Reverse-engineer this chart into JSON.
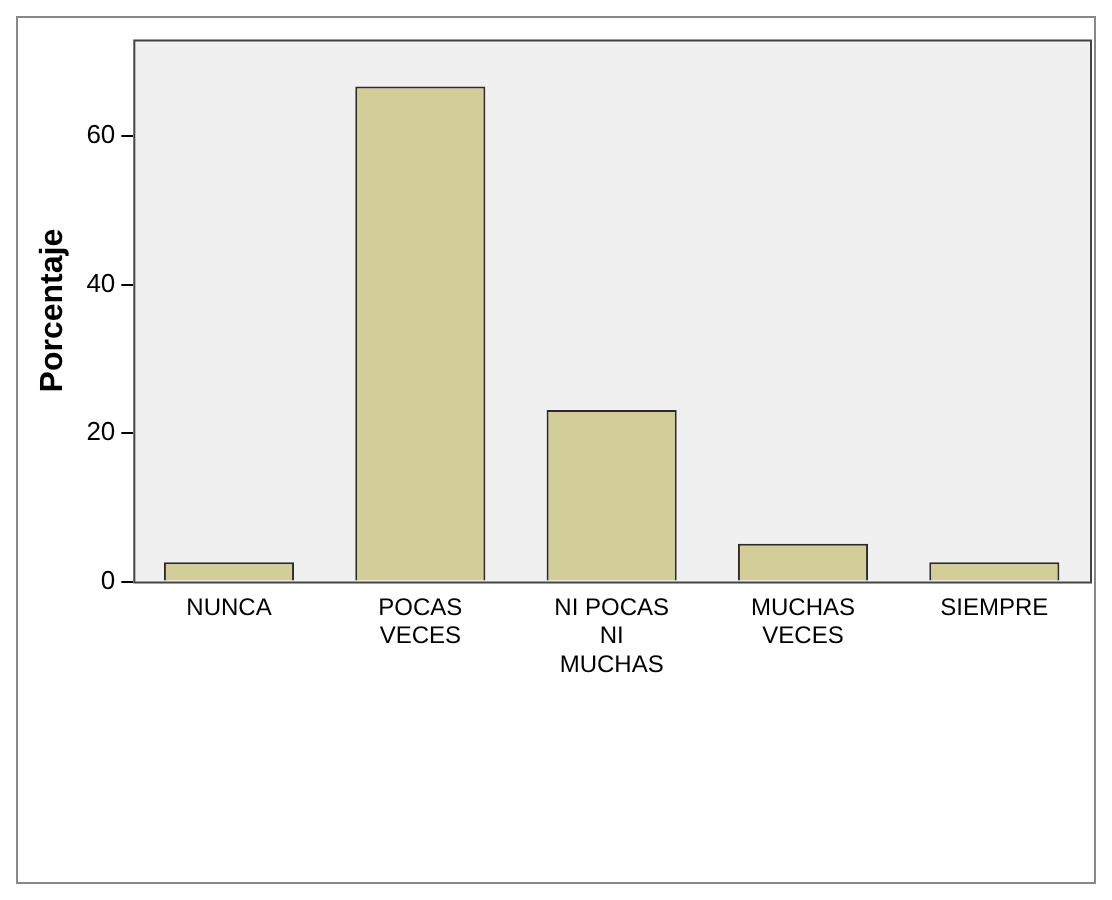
{
  "chart_data": {
    "type": "bar",
    "ylabel": "Porcentaje",
    "categories": [
      "NUNCA",
      "POCAS VECES",
      "NI POCAS NI MUCHAS",
      "MUCHAS VECES",
      "SIEMPRE"
    ],
    "values": [
      2.6,
      66.7,
      23.1,
      5.1,
      2.6
    ],
    "color": "#d3ce97",
    "ylim": [
      0,
      73
    ],
    "yticks": [
      0,
      20,
      40,
      60
    ],
    "grid": false,
    "legend": false
  }
}
